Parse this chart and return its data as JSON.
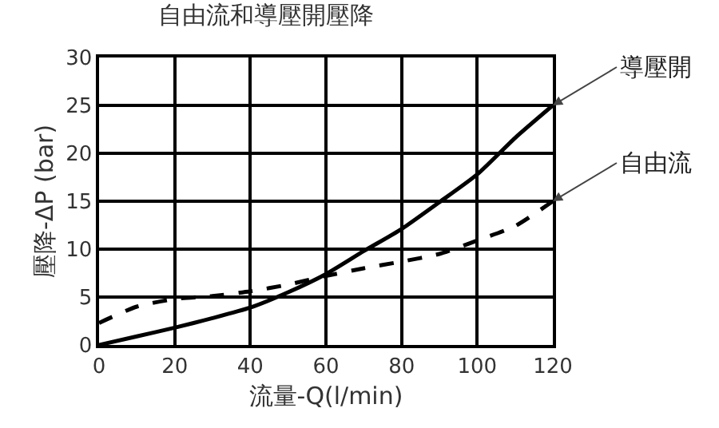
{
  "chart_data": {
    "type": "line",
    "title": "自由流和導壓開壓降",
    "xlabel": "流量-Q(l/min)",
    "ylabel": "壓降-ΔP (bar)",
    "x": [
      0,
      10,
      20,
      30,
      40,
      50,
      60,
      70,
      80,
      90,
      100,
      110,
      120
    ],
    "series": [
      {
        "name": "導壓開",
        "color": "#000000",
        "line_style": "solid",
        "values": [
          0,
          0.9,
          1.8,
          2.8,
          3.9,
          5.5,
          7.4,
          9.8,
          12.1,
          14.9,
          17.8,
          21.6,
          25
        ]
      },
      {
        "name": "自由流",
        "color": "#000000",
        "line_style": "dashed",
        "values": [
          2.3,
          4,
          4.8,
          5.1,
          5.6,
          6.3,
          7.2,
          8,
          8.7,
          9.5,
          10.9,
          12.4,
          15
        ]
      }
    ],
    "xlim": [
      0,
      120
    ],
    "xticks": [
      0,
      20,
      40,
      60,
      80,
      100,
      120
    ],
    "ylim": [
      0,
      30
    ],
    "yticks": [
      0,
      5,
      10,
      15,
      20,
      25,
      30
    ],
    "grid": true,
    "legend": false,
    "marker": "none"
  }
}
